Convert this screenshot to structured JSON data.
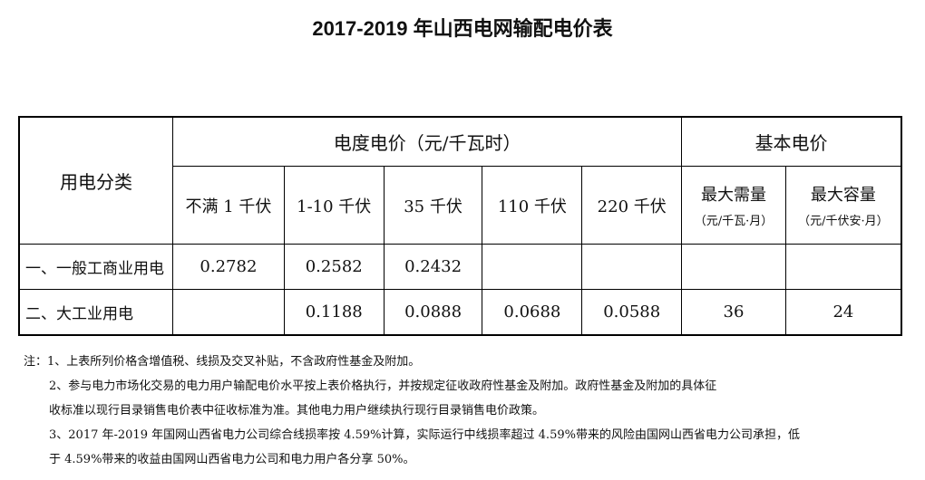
{
  "title": "2017-2019 年山西电网输配电价表",
  "table": {
    "category_header": "用电分类",
    "energy_price_header": "电度电价（元/千瓦时）",
    "basic_price_header": "基本电价",
    "voltage_levels": [
      "不满 1 千伏",
      "1-10 千伏",
      "35 千伏",
      "110 千伏",
      "220 千伏"
    ],
    "basic_columns": [
      {
        "label": "最大需量",
        "unit": "（元/千瓦·月）"
      },
      {
        "label": "最大容量",
        "unit": "（元/千伏安·月）"
      }
    ],
    "rows": [
      {
        "label": "一、一般工商业用电",
        "values": [
          "0.2782",
          "0.2582",
          "0.2432",
          "",
          "",
          "",
          ""
        ]
      },
      {
        "label": "二、大工业用电",
        "values": [
          "",
          "0.1188",
          "0.0888",
          "0.0688",
          "0.0588",
          "36",
          "24"
        ]
      }
    ]
  },
  "notes": [
    "注：1、上表所列价格含增值税、线损及交叉补贴，不含政府性基金及附加。",
    "2、参与电力市场化交易的电力用户输配电价水平按上表价格执行，并按规定征收政府性基金及附加。政府性基金及附加的具体征",
    "收标准以现行目录销售电价表中征收标准为准。其他电力用户继续执行现行目录销售电价政策。",
    "3、2017 年-2019 年国网山西省电力公司综合线损率按 4.59%计算，实际运行中线损率超过 4.59%带来的风险由国网山西省电力公司承担，低",
    "于 4.59%带来的收益由国网山西省电力公司和电力用户各分享 50%。"
  ]
}
